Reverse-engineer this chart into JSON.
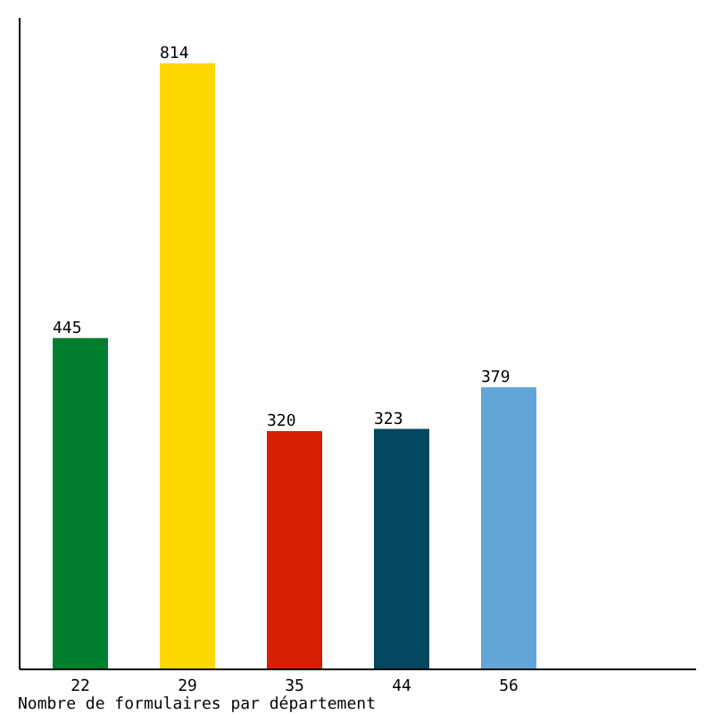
{
  "chart_data": {
    "type": "bar",
    "xlabel": "Nombre de formulaires par département",
    "categories": [
      "22",
      "29",
      "35",
      "44",
      "56"
    ],
    "values": [
      445,
      814,
      320,
      323,
      379
    ],
    "colors": [
      "#007f2e",
      "#ffd700",
      "#d81e05",
      "#00475f",
      "#62a6d8"
    ],
    "data_labels": true,
    "tick_labels": "x"
  }
}
